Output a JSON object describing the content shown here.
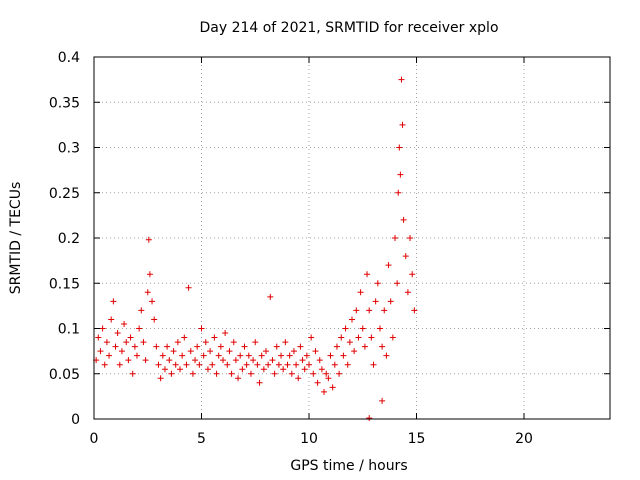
{
  "chart_data": {
    "type": "scatter",
    "title": "Day 214 of 2021, SRMTID for receiver xplo",
    "xlabel": "GPS time / hours",
    "ylabel": "SRMTID / TECUs",
    "xlim": [
      0,
      24
    ],
    "ylim": [
      0,
      0.4
    ],
    "xticks": [
      0,
      5,
      10,
      15,
      20
    ],
    "yticks": [
      0,
      0.05,
      0.1,
      0.15,
      0.2,
      0.25,
      0.3,
      0.35,
      0.4
    ],
    "xtick_labels": [
      "0",
      "5",
      "10",
      "15",
      "20"
    ],
    "ytick_labels": [
      "0",
      "0.05",
      "0.1",
      "0.15",
      "0.2",
      "0.25",
      "0.3",
      "0.35",
      "0.4"
    ],
    "grid": true,
    "marker": "+",
    "color": "#e00000",
    "series": [
      {
        "name": "SRMTID",
        "points": [
          [
            0.1,
            0.065
          ],
          [
            0.2,
            0.09
          ],
          [
            0.3,
            0.075
          ],
          [
            0.4,
            0.1
          ],
          [
            0.5,
            0.06
          ],
          [
            0.6,
            0.085
          ],
          [
            0.7,
            0.07
          ],
          [
            0.8,
            0.11
          ],
          [
            0.9,
            0.13
          ],
          [
            1.0,
            0.08
          ],
          [
            1.1,
            0.095
          ],
          [
            1.2,
            0.06
          ],
          [
            1.3,
            0.075
          ],
          [
            1.4,
            0.105
          ],
          [
            1.5,
            0.085
          ],
          [
            1.6,
            0.065
          ],
          [
            1.7,
            0.09
          ],
          [
            1.8,
            0.05
          ],
          [
            1.9,
            0.08
          ],
          [
            2.0,
            0.07
          ],
          [
            2.1,
            0.1
          ],
          [
            2.2,
            0.12
          ],
          [
            2.3,
            0.085
          ],
          [
            2.4,
            0.065
          ],
          [
            2.5,
            0.14
          ],
          [
            2.55,
            0.198
          ],
          [
            2.6,
            0.16
          ],
          [
            2.7,
            0.13
          ],
          [
            2.8,
            0.11
          ],
          [
            2.9,
            0.08
          ],
          [
            3.0,
            0.06
          ],
          [
            3.1,
            0.045
          ],
          [
            3.2,
            0.07
          ],
          [
            3.3,
            0.055
          ],
          [
            3.4,
            0.08
          ],
          [
            3.5,
            0.065
          ],
          [
            3.6,
            0.05
          ],
          [
            3.7,
            0.075
          ],
          [
            3.8,
            0.06
          ],
          [
            3.9,
            0.085
          ],
          [
            4.0,
            0.055
          ],
          [
            4.1,
            0.07
          ],
          [
            4.2,
            0.09
          ],
          [
            4.3,
            0.06
          ],
          [
            4.4,
            0.145
          ],
          [
            4.5,
            0.075
          ],
          [
            4.6,
            0.05
          ],
          [
            4.7,
            0.065
          ],
          [
            4.8,
            0.08
          ],
          [
            4.9,
            0.06
          ],
          [
            5.0,
            0.1
          ],
          [
            5.1,
            0.07
          ],
          [
            5.2,
            0.085
          ],
          [
            5.3,
            0.055
          ],
          [
            5.4,
            0.075
          ],
          [
            5.5,
            0.06
          ],
          [
            5.6,
            0.09
          ],
          [
            5.7,
            0.05
          ],
          [
            5.8,
            0.07
          ],
          [
            5.9,
            0.08
          ],
          [
            6.0,
            0.065
          ],
          [
            6.1,
            0.095
          ],
          [
            6.2,
            0.06
          ],
          [
            6.3,
            0.075
          ],
          [
            6.4,
            0.05
          ],
          [
            6.5,
            0.085
          ],
          [
            6.6,
            0.065
          ],
          [
            6.7,
            0.045
          ],
          [
            6.8,
            0.07
          ],
          [
            6.9,
            0.055
          ],
          [
            7.0,
            0.08
          ],
          [
            7.1,
            0.06
          ],
          [
            7.2,
            0.07
          ],
          [
            7.3,
            0.05
          ],
          [
            7.4,
            0.065
          ],
          [
            7.5,
            0.085
          ],
          [
            7.6,
            0.06
          ],
          [
            7.7,
            0.04
          ],
          [
            7.8,
            0.07
          ],
          [
            7.9,
            0.055
          ],
          [
            8.0,
            0.075
          ],
          [
            8.1,
            0.06
          ],
          [
            8.2,
            0.135
          ],
          [
            8.3,
            0.065
          ],
          [
            8.4,
            0.05
          ],
          [
            8.5,
            0.08
          ],
          [
            8.6,
            0.06
          ],
          [
            8.7,
            0.07
          ],
          [
            8.8,
            0.055
          ],
          [
            8.9,
            0.085
          ],
          [
            9.0,
            0.06
          ],
          [
            9.1,
            0.07
          ],
          [
            9.2,
            0.05
          ],
          [
            9.3,
            0.075
          ],
          [
            9.4,
            0.06
          ],
          [
            9.5,
            0.045
          ],
          [
            9.6,
            0.08
          ],
          [
            9.7,
            0.065
          ],
          [
            9.8,
            0.055
          ],
          [
            9.9,
            0.07
          ],
          [
            10.0,
            0.06
          ],
          [
            10.1,
            0.09
          ],
          [
            10.2,
            0.05
          ],
          [
            10.3,
            0.075
          ],
          [
            10.4,
            0.04
          ],
          [
            10.5,
            0.065
          ],
          [
            10.6,
            0.055
          ],
          [
            10.7,
            0.03
          ],
          [
            10.8,
            0.05
          ],
          [
            10.9,
            0.045
          ],
          [
            11.0,
            0.07
          ],
          [
            11.1,
            0.035
          ],
          [
            11.2,
            0.06
          ],
          [
            11.3,
            0.08
          ],
          [
            11.4,
            0.05
          ],
          [
            11.5,
            0.09
          ],
          [
            11.6,
            0.07
          ],
          [
            11.7,
            0.1
          ],
          [
            11.8,
            0.06
          ],
          [
            11.9,
            0.085
          ],
          [
            12.0,
            0.11
          ],
          [
            12.1,
            0.075
          ],
          [
            12.2,
            0.12
          ],
          [
            12.3,
            0.09
          ],
          [
            12.4,
            0.14
          ],
          [
            12.5,
            0.1
          ],
          [
            12.6,
            0.08
          ],
          [
            12.7,
            0.16
          ],
          [
            12.8,
            0.12
          ],
          [
            12.9,
            0.09
          ],
          [
            13.0,
            0.06
          ],
          [
            13.1,
            0.13
          ],
          [
            13.2,
            0.15
          ],
          [
            13.3,
            0.1
          ],
          [
            13.4,
            0.08
          ],
          [
            13.5,
            0.12
          ],
          [
            13.6,
            0.07
          ],
          [
            13.7,
            0.17
          ],
          [
            13.8,
            0.13
          ],
          [
            13.9,
            0.09
          ],
          [
            14.0,
            0.2
          ],
          [
            14.1,
            0.15
          ],
          [
            14.15,
            0.25
          ],
          [
            14.2,
            0.3
          ],
          [
            14.25,
            0.27
          ],
          [
            14.3,
            0.375
          ],
          [
            14.35,
            0.325
          ],
          [
            14.4,
            0.22
          ],
          [
            14.5,
            0.18
          ],
          [
            14.6,
            0.14
          ],
          [
            14.7,
            0.2
          ],
          [
            14.8,
            0.16
          ],
          [
            14.9,
            0.12
          ],
          [
            13.4,
            0.02
          ],
          [
            12.8,
            0.001
          ]
        ]
      }
    ]
  }
}
